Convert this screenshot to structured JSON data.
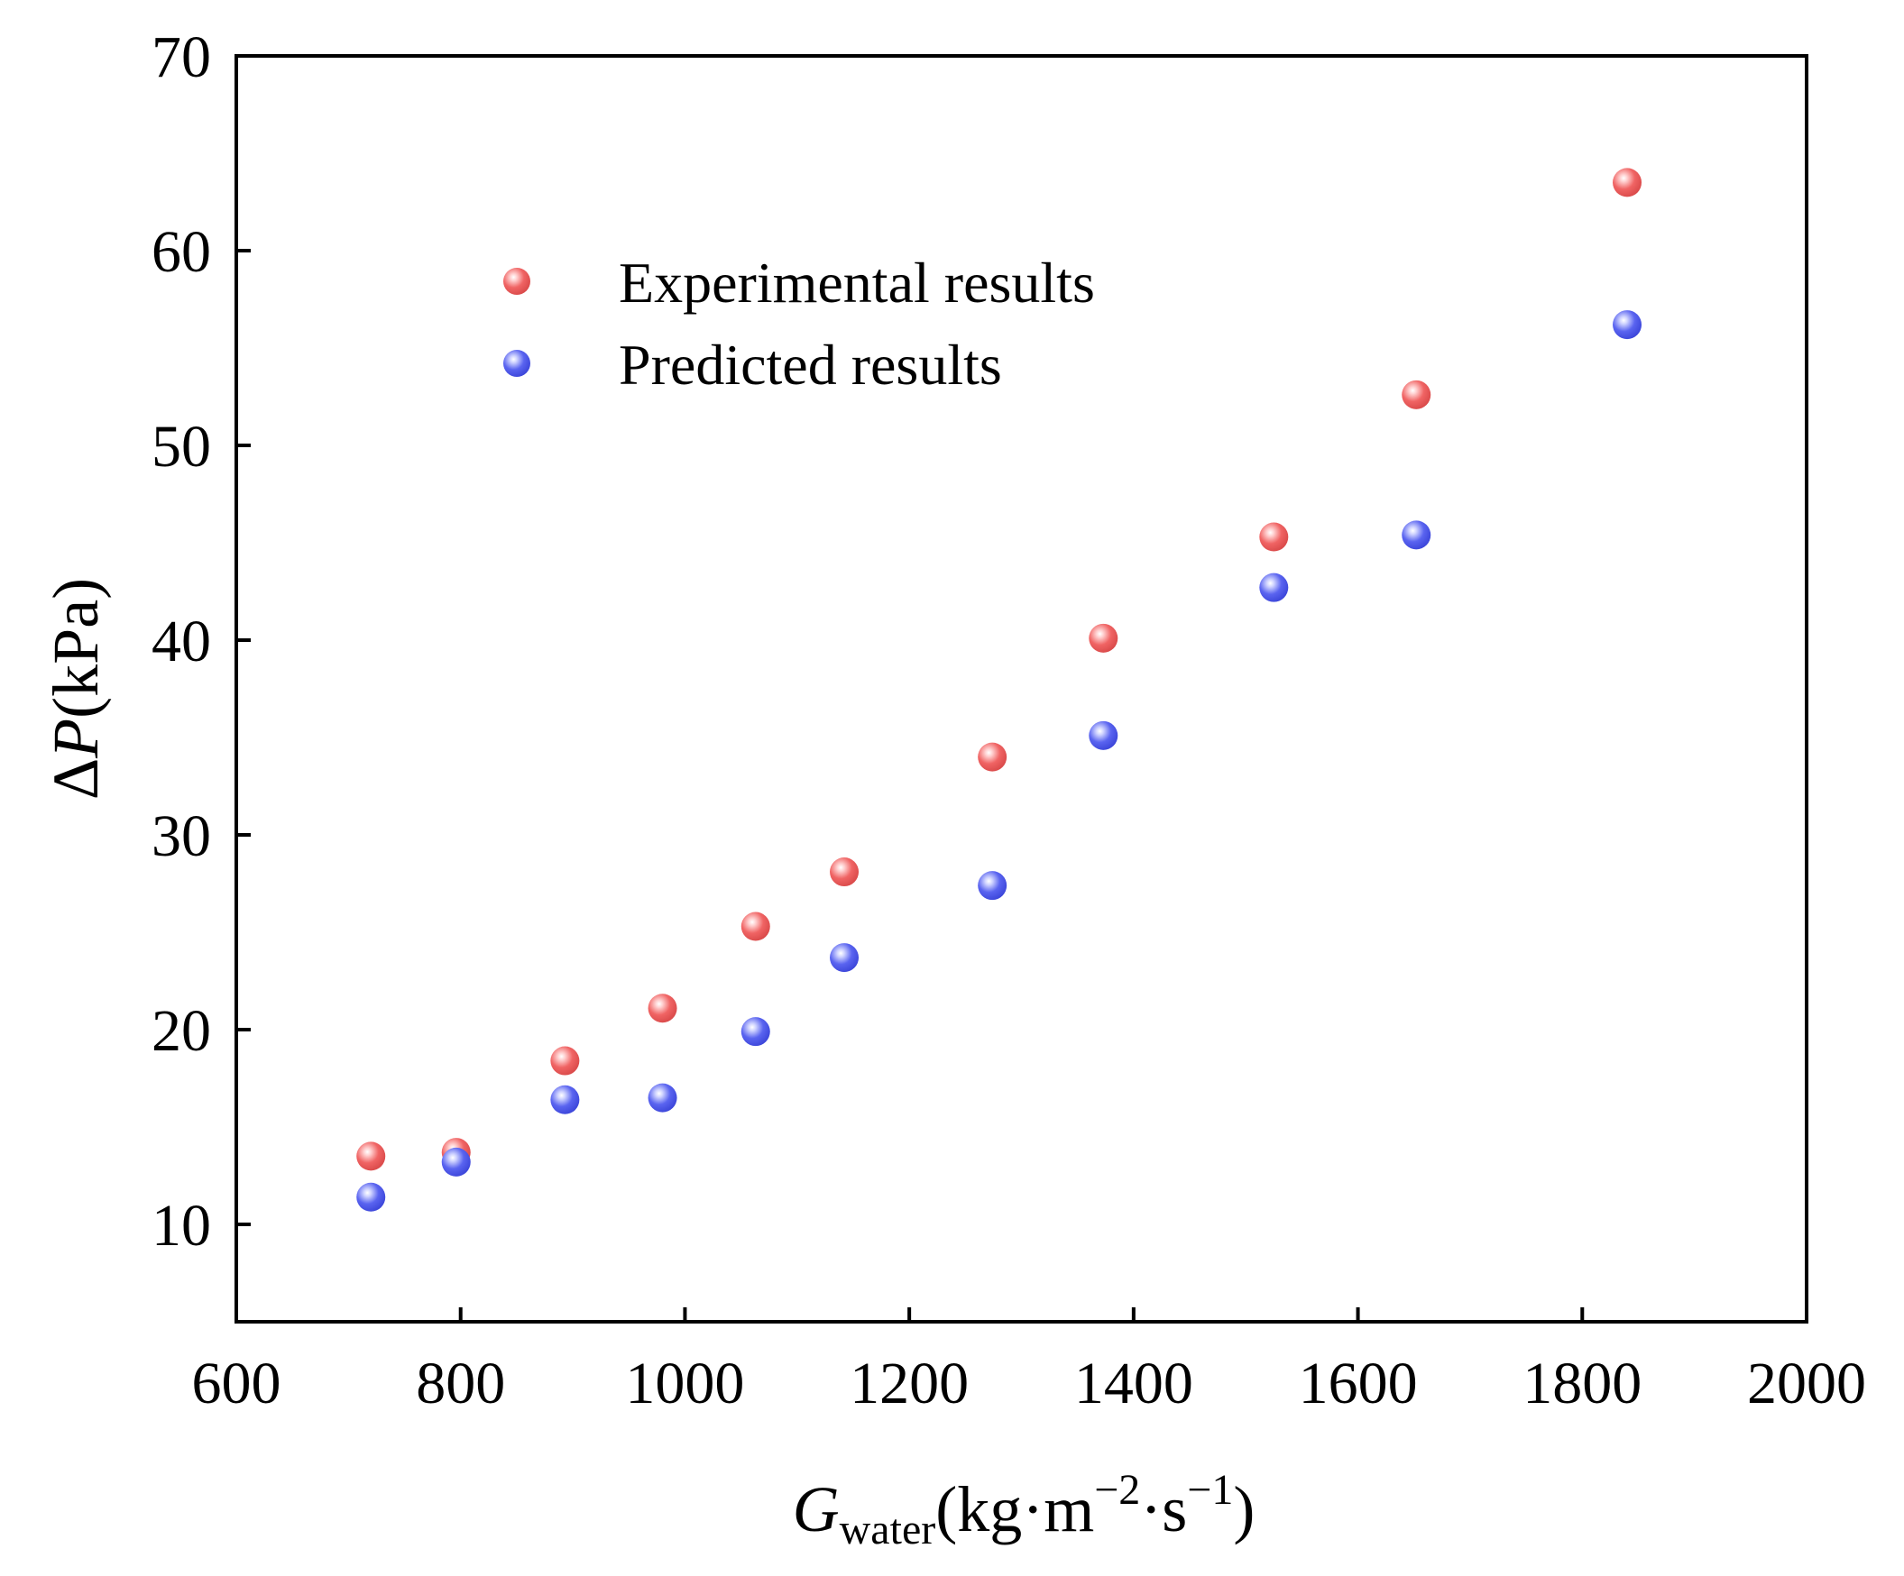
{
  "chart_data": {
    "type": "scatter",
    "title": "",
    "xlabel": {
      "main": "G",
      "sub": "water",
      "unit_a": "(kg·m",
      "sup_a": "−2",
      "unit_b": "·s",
      "sup_b": "−1",
      "unit_c": ")"
    },
    "ylabel": {
      "delta": "Δ",
      "var": "P",
      "unit": "(kPa)"
    },
    "xlim": [
      600,
      2000
    ],
    "ylim": [
      5,
      70
    ],
    "xticks": [
      600,
      800,
      1000,
      1200,
      1400,
      1600,
      1800,
      2000
    ],
    "yticks": [
      10,
      20,
      30,
      40,
      50,
      60,
      70
    ],
    "legend_position": "top-left",
    "series": [
      {
        "name": "Experimental results",
        "color": "#f06464",
        "x": [
          720,
          796,
          893,
          980,
          1063,
          1142,
          1274,
          1373,
          1525,
          1652,
          1840
        ],
        "y": [
          13.5,
          13.7,
          18.4,
          21.1,
          25.3,
          28.1,
          34.0,
          40.1,
          45.3,
          52.6,
          63.5
        ]
      },
      {
        "name": "Predicted results",
        "color": "#5a64f0",
        "x": [
          720,
          796,
          893,
          980,
          1063,
          1142,
          1274,
          1373,
          1525,
          1652,
          1840
        ],
        "y": [
          11.4,
          13.2,
          16.4,
          16.5,
          19.9,
          23.7,
          27.4,
          35.1,
          42.7,
          45.4,
          56.2
        ]
      }
    ]
  }
}
